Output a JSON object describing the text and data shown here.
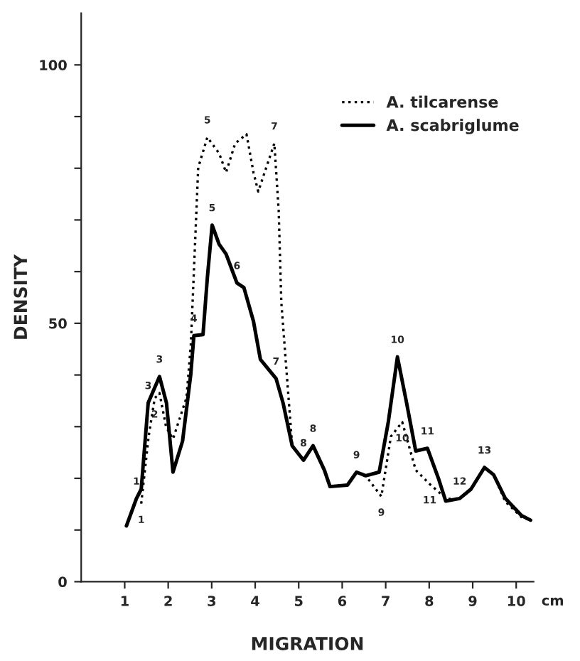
{
  "chart_data": {
    "type": "line",
    "xlabel": "MIGRATION",
    "ylabel": "DENSITY",
    "xlim": [
      0,
      10.4
    ],
    "xticks": [
      1,
      2,
      3,
      4,
      5,
      6,
      7,
      8,
      9,
      10
    ],
    "ylim": [
      0,
      110
    ],
    "yticks": [
      0,
      {
        "value": 10,
        "label": null
      },
      {
        "value": 20,
        "label": null
      },
      {
        "value": 30,
        "label": null
      },
      {
        "value": 40,
        "label": null
      },
      50,
      {
        "value": 60,
        "label": null
      },
      {
        "value": 70,
        "label": null
      },
      {
        "value": 80,
        "label": null
      },
      {
        "value": 90,
        "label": null
      },
      100
    ],
    "grid": false,
    "legend": "top right",
    "series": [
      {
        "name": "A. tilcarense",
        "color": "#000000",
        "line_style": "dotted",
        "x": [
          1.38,
          1.55,
          1.69,
          1.8,
          1.95,
          2.11,
          2.42,
          2.52,
          2.69,
          2.9,
          3.17,
          3.33,
          3.54,
          3.8,
          3.96,
          4.07,
          4.44,
          4.54,
          4.6,
          4.85,
          5.11,
          5.33,
          5.59,
          5.72,
          6.12,
          6.33,
          6.54,
          6.9,
          7.12,
          7.38,
          7.69,
          8.01,
          8.4,
          8.7,
          8.96,
          9.27,
          9.48,
          9.75,
          10.12,
          10.33
        ],
        "values": [
          15.1,
          28.1,
          35.5,
          36.5,
          30.0,
          27.6,
          35.6,
          45.8,
          80.1,
          86.0,
          82.9,
          79.2,
          84.8,
          86.6,
          79.2,
          75.5,
          84.8,
          71.8,
          54.1,
          26.3,
          23.5,
          26.3,
          21.6,
          18.4,
          18.7,
          21.2,
          20.5,
          16.5,
          28.1,
          30.9,
          21.6,
          18.9,
          16.0,
          16.1,
          17.9,
          22.1,
          20.7,
          15.5,
          12.5,
          11.9
        ]
      },
      {
        "name": "A. scabriglume",
        "color": "#000000",
        "line_style": "solid",
        "x": [
          1.04,
          1.27,
          1.38,
          1.54,
          1.8,
          1.96,
          2.11,
          2.33,
          2.52,
          2.59,
          2.8,
          2.9,
          3.01,
          3.17,
          3.33,
          3.58,
          3.74,
          3.96,
          4.12,
          4.48,
          4.64,
          4.85,
          5.11,
          5.33,
          5.59,
          5.72,
          6.12,
          6.33,
          6.54,
          6.85,
          7.06,
          7.27,
          7.48,
          7.69,
          7.96,
          8.22,
          8.38,
          8.7,
          8.96,
          9.27,
          9.48,
          9.75,
          10.12,
          10.33
        ],
        "values": [
          10.8,
          16.1,
          17.9,
          34.6,
          39.7,
          34.6,
          21.2,
          27.2,
          40.2,
          47.6,
          47.8,
          58.8,
          69.0,
          65.3,
          63.4,
          57.8,
          56.9,
          50.4,
          43.0,
          39.3,
          34.6,
          26.3,
          23.5,
          26.3,
          21.6,
          18.4,
          18.7,
          21.2,
          20.5,
          21.2,
          30.9,
          43.5,
          34.6,
          25.3,
          25.8,
          19.8,
          15.6,
          16.1,
          17.9,
          22.1,
          20.7,
          16.1,
          12.8,
          11.9
        ]
      }
    ],
    "annotations": [
      "cm",
      {
        "text": "1",
        "x": 1.27,
        "y": 16.1
      },
      {
        "text": "3",
        "x": 1.54,
        "y": 34.6
      },
      {
        "text": "3",
        "x": 1.8,
        "y": 39.7
      },
      {
        "text": "4",
        "x": 2.59,
        "y": 47.6
      },
      {
        "text": "5",
        "x": 3.01,
        "y": 69.0
      },
      {
        "text": "6",
        "x": 3.58,
        "y": 57.8
      },
      {
        "text": "7",
        "x": 4.48,
        "y": 39.3
      },
      {
        "text": "8",
        "x": 5.33,
        "y": 26.3
      },
      {
        "text": "9",
        "x": 6.33,
        "y": 21.2
      },
      {
        "text": "10",
        "x": 7.27,
        "y": 43.5
      },
      {
        "text": "11",
        "x": 7.96,
        "y": 25.8
      },
      {
        "text": "12",
        "x": 8.7,
        "y": 16.1
      },
      {
        "text": "13",
        "x": 9.27,
        "y": 22.1
      },
      {
        "text": "1",
        "x": 1.38,
        "y": 15.1
      },
      {
        "text": "2",
        "x": 1.69,
        "y": 35.5
      },
      {
        "text": "5",
        "x": 2.9,
        "y": 86.0
      },
      {
        "text": "7",
        "x": 4.44,
        "y": 84.8
      },
      {
        "text": "8",
        "x": 5.11,
        "y": 23.5
      },
      {
        "text": "9",
        "x": 6.9,
        "y": 16.5
      },
      {
        "text": "10",
        "x": 7.38,
        "y": 30.9
      },
      {
        "text": "11",
        "x": 8.01,
        "y": 18.9
      }
    ]
  }
}
